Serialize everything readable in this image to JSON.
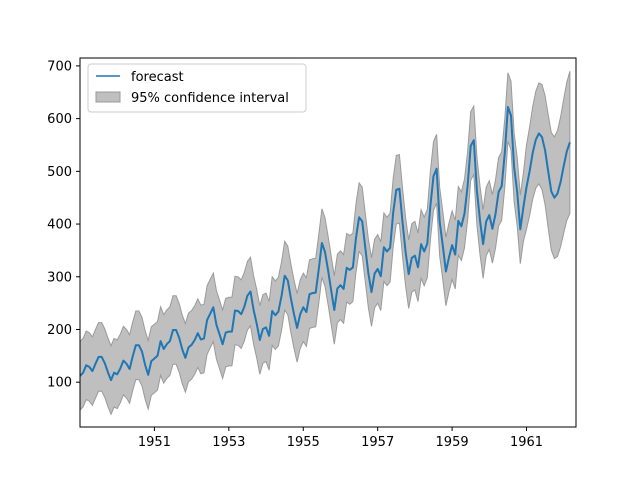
{
  "chart_data": {
    "type": "line",
    "title": "",
    "xlabel": "",
    "ylabel": "",
    "x_start": 1949.0,
    "x_step": 0.0833333,
    "xlim": [
      1949.0,
      1962.33
    ],
    "ylim": [
      15,
      715
    ],
    "x_ticks": [
      1951,
      1953,
      1955,
      1957,
      1959,
      1961
    ],
    "x_tick_labels": [
      "1951",
      "1953",
      "1955",
      "1957",
      "1959",
      "1961"
    ],
    "y_ticks": [
      100,
      200,
      300,
      400,
      500,
      600,
      700
    ],
    "y_tick_labels": [
      "100",
      "200",
      "300",
      "400",
      "500",
      "600",
      "700"
    ],
    "grid": false,
    "legend_position": "upper-left",
    "series": [
      {
        "name": "forecast",
        "color": "#1f77b4",
        "values": [
          112,
          118,
          132,
          129,
          121,
          135,
          148,
          148,
          136,
          119,
          104,
          118,
          115,
          126,
          141,
          135,
          125,
          149,
          170,
          170,
          158,
          133,
          114,
          140,
          145,
          150,
          178,
          163,
          172,
          178,
          199,
          199,
          184,
          162,
          146,
          166,
          171,
          180,
          193,
          181,
          183,
          218,
          230,
          242,
          209,
          191,
          172,
          194,
          196,
          196,
          236,
          235,
          229,
          243,
          264,
          272,
          237,
          211,
          180,
          201,
          204,
          188,
          235,
          227,
          234,
          264,
          302,
          293,
          259,
          229,
          203,
          229,
          242,
          233,
          267,
          269,
          270,
          315,
          364,
          347,
          312,
          274,
          237,
          278,
          284,
          277,
          317,
          313,
          318,
          374,
          413,
          405,
          355,
          306,
          271,
          306,
          315,
          301,
          356,
          348,
          355,
          422,
          465,
          467,
          404,
          347,
          305,
          336,
          340,
          318,
          362,
          348,
          363,
          435,
          491,
          505,
          404,
          359,
          310,
          337,
          360,
          342,
          406,
          396,
          420,
          472,
          548,
          559,
          463,
          407,
          362,
          405,
          417,
          391,
          419,
          461,
          472,
          535,
          622,
          606,
          508,
          461,
          390,
          432,
          470,
          500,
          535,
          560,
          572,
          565,
          540,
          500,
          462,
          450,
          458,
          480,
          510,
          538,
          555
        ]
      }
    ],
    "confidence_band": {
      "name": "95% confidence interval",
      "color": "#bfbfbf",
      "edge_color": "#9a9a9a",
      "half_width_in_sample": 65,
      "half_width_forecast_start": 80,
      "half_width_forecast_end": 135
    },
    "forecast_start_index": 144
  }
}
